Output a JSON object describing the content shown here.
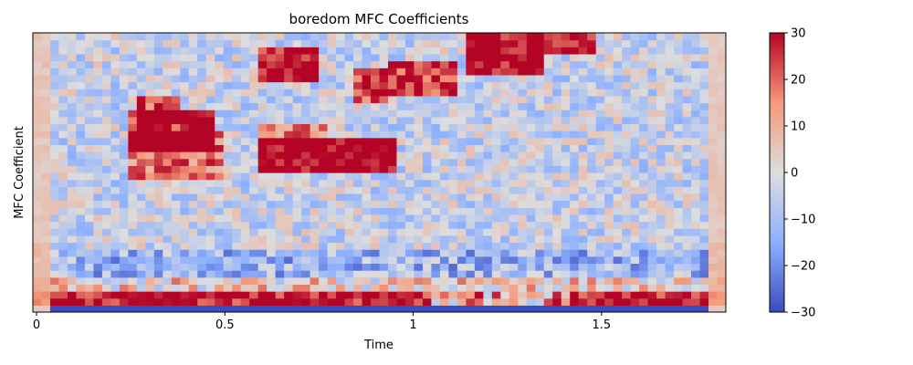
{
  "chart_data": {
    "type": "heatmap",
    "title": "boredom MFC Coefficients",
    "xlabel": "Time",
    "ylabel": "MFC Coefficient",
    "xlim": [
      0,
      1.83
    ],
    "x_ticks": [
      {
        "value": 0,
        "label": "0"
      },
      {
        "value": 0.5,
        "label": "0.5"
      },
      {
        "value": 1,
        "label": "1"
      },
      {
        "value": 1.5,
        "label": "1.5"
      }
    ],
    "colormap": "coolwarm",
    "colorbar": {
      "min": -30,
      "max": 30,
      "ticks": [
        {
          "value": 30,
          "label": "30"
        },
        {
          "value": 20,
          "label": "20"
        },
        {
          "value": 10,
          "label": "10"
        },
        {
          "value": 0,
          "label": "0"
        },
        {
          "value": -10,
          "label": "−10"
        },
        {
          "value": -20,
          "label": "−20"
        },
        {
          "value": -30,
          "label": "−30"
        }
      ]
    },
    "grid": false,
    "n_frames": 80,
    "n_coefficients": 40
  }
}
